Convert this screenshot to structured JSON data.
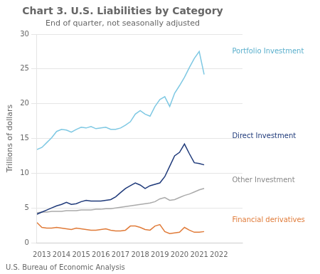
{
  "chart_data": {
    "type": "line",
    "title": "Chart 3. U.S. Liabilities by Category",
    "subtitle": "End of quarter, not seasonally adjusted",
    "ylabel": "Trillions of dollars",
    "footer": "U.S. Bureau of Economic Analysis",
    "x": [
      2012.75,
      2013,
      2013.25,
      2013.5,
      2013.75,
      2014,
      2014.25,
      2014.5,
      2014.75,
      2015,
      2015.25,
      2015.5,
      2015.75,
      2016,
      2016.25,
      2016.5,
      2016.75,
      2017,
      2017.25,
      2017.5,
      2017.75,
      2018,
      2018.25,
      2018.5,
      2018.75,
      2019,
      2019.25,
      2019.5,
      2019.75,
      2020,
      2020.25,
      2020.5,
      2020.75,
      2021,
      2021.25
    ],
    "xlim": [
      2012.75,
      2023.2
    ],
    "xticks": [
      2013,
      2014,
      2015,
      2016,
      2017,
      2018,
      2019,
      2020,
      2021,
      2022
    ],
    "ylim": [
      0,
      30
    ],
    "yticks": [
      0,
      5,
      10,
      15,
      20,
      25,
      30
    ],
    "grid": "y",
    "series": [
      {
        "name": "Portfolio Investment",
        "color": "#7EC8E3",
        "values": [
          13.4,
          13.7,
          14.4,
          15.1,
          16.0,
          16.3,
          16.2,
          15.9,
          16.3,
          16.6,
          16.5,
          16.7,
          16.4,
          16.5,
          16.6,
          16.3,
          16.3,
          16.5,
          16.9,
          17.4,
          18.5,
          19.0,
          18.5,
          18.2,
          19.6,
          20.6,
          21.0,
          19.6,
          21.5,
          22.6,
          23.8,
          25.2,
          26.5,
          27.5,
          24.2
        ]
      },
      {
        "name": "Direct Investment",
        "color": "#1F3A7A",
        "values": [
          4.1,
          4.4,
          4.7,
          5.0,
          5.3,
          5.5,
          5.8,
          5.5,
          5.6,
          5.9,
          6.1,
          6.0,
          6.0,
          6.0,
          6.1,
          6.2,
          6.6,
          7.2,
          7.8,
          8.2,
          8.6,
          8.3,
          7.8,
          8.2,
          8.4,
          8.6,
          9.5,
          11.0,
          12.5,
          13.0,
          14.2,
          12.8,
          11.5,
          11.4,
          11.2
        ]
      },
      {
        "name": "Other Investment",
        "color": "#AAAAAA",
        "values": [
          4.3,
          4.4,
          4.4,
          4.5,
          4.5,
          4.5,
          4.6,
          4.6,
          4.6,
          4.7,
          4.7,
          4.7,
          4.8,
          4.8,
          4.9,
          4.9,
          5.0,
          5.1,
          5.2,
          5.3,
          5.4,
          5.5,
          5.6,
          5.7,
          5.9,
          6.3,
          6.5,
          6.1,
          6.2,
          6.5,
          6.8,
          7.0,
          7.3,
          7.6,
          7.8
        ]
      },
      {
        "name": "Financial derivatives",
        "color": "#E07B39",
        "values": [
          2.9,
          2.2,
          2.1,
          2.1,
          2.2,
          2.1,
          2.0,
          1.9,
          2.1,
          2.0,
          1.9,
          1.8,
          1.8,
          1.9,
          2.0,
          1.8,
          1.7,
          1.7,
          1.8,
          2.4,
          2.4,
          2.2,
          1.9,
          1.8,
          2.4,
          2.6,
          1.6,
          1.3,
          1.4,
          1.5,
          2.2,
          1.8,
          1.5,
          1.5,
          1.6
        ]
      }
    ],
    "annotations": [
      {
        "text": "Portfolio Investment",
        "x": 2022.6,
        "y": 27.5,
        "color": "#5AAFCC"
      },
      {
        "text": "Direct Investment",
        "x": 2022.6,
        "y": 15.3,
        "color": "#1F3A7A"
      },
      {
        "text": "Other Investment",
        "x": 2022.6,
        "y": 9.0,
        "color": "#888888"
      },
      {
        "text": "Financial derivatives",
        "x": 2022.6,
        "y": 3.2,
        "color": "#E07B39"
      }
    ]
  }
}
